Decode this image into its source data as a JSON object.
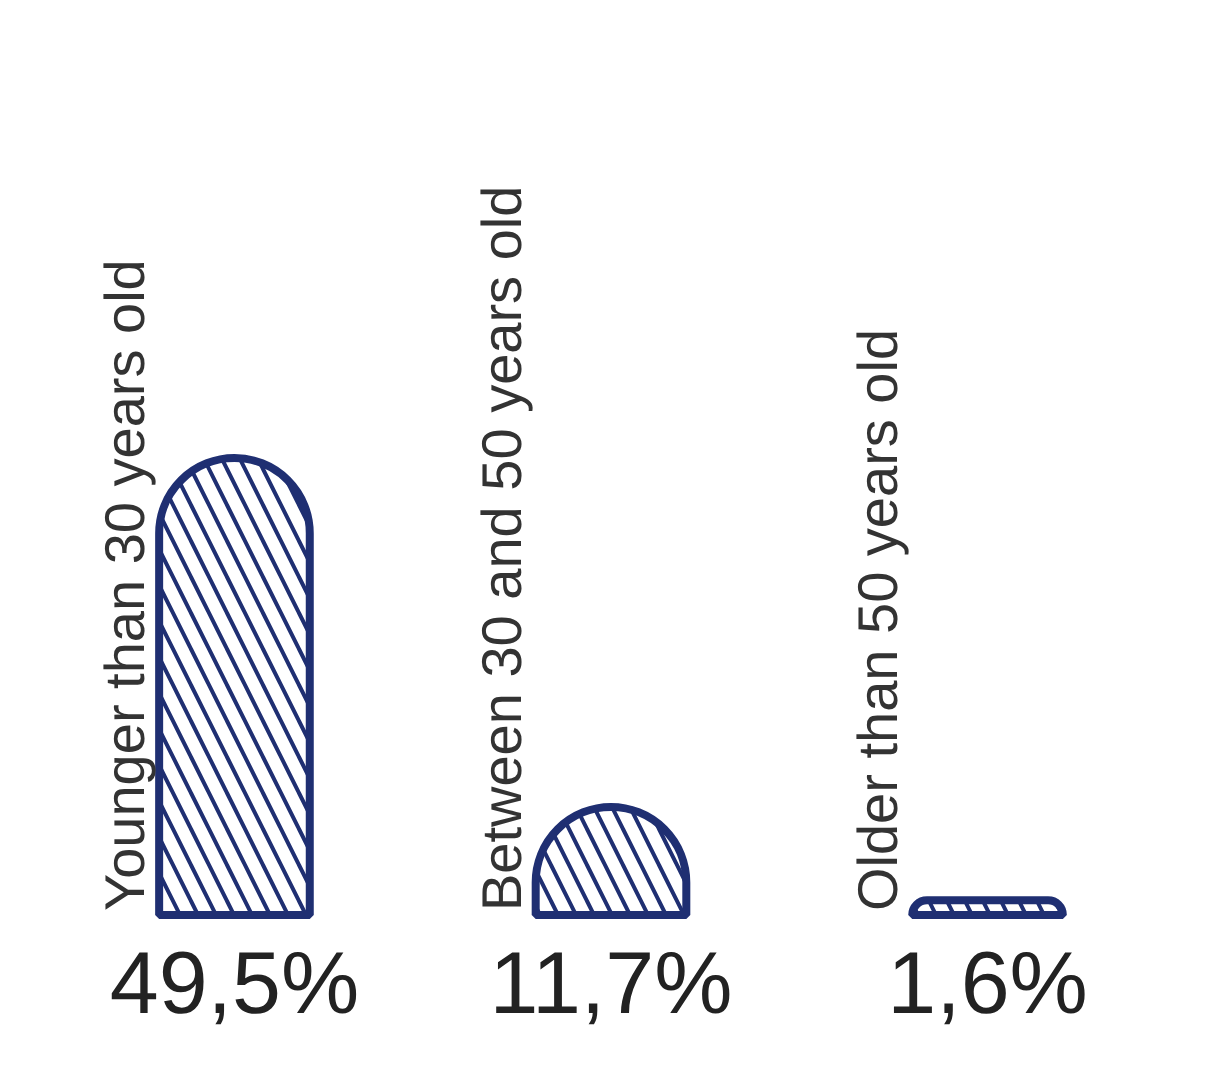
{
  "chart_data": {
    "type": "bar",
    "categories": [
      "Younger than 30 years old",
      "Between 30 and 50 years old",
      "Older than 50 years old"
    ],
    "values": [
      49.5,
      11.7,
      1.6
    ],
    "color": "#1f2f72",
    "value_labels": [
      "49,5%",
      "11,7%",
      "1,6%"
    ],
    "tick_labels": false
  }
}
